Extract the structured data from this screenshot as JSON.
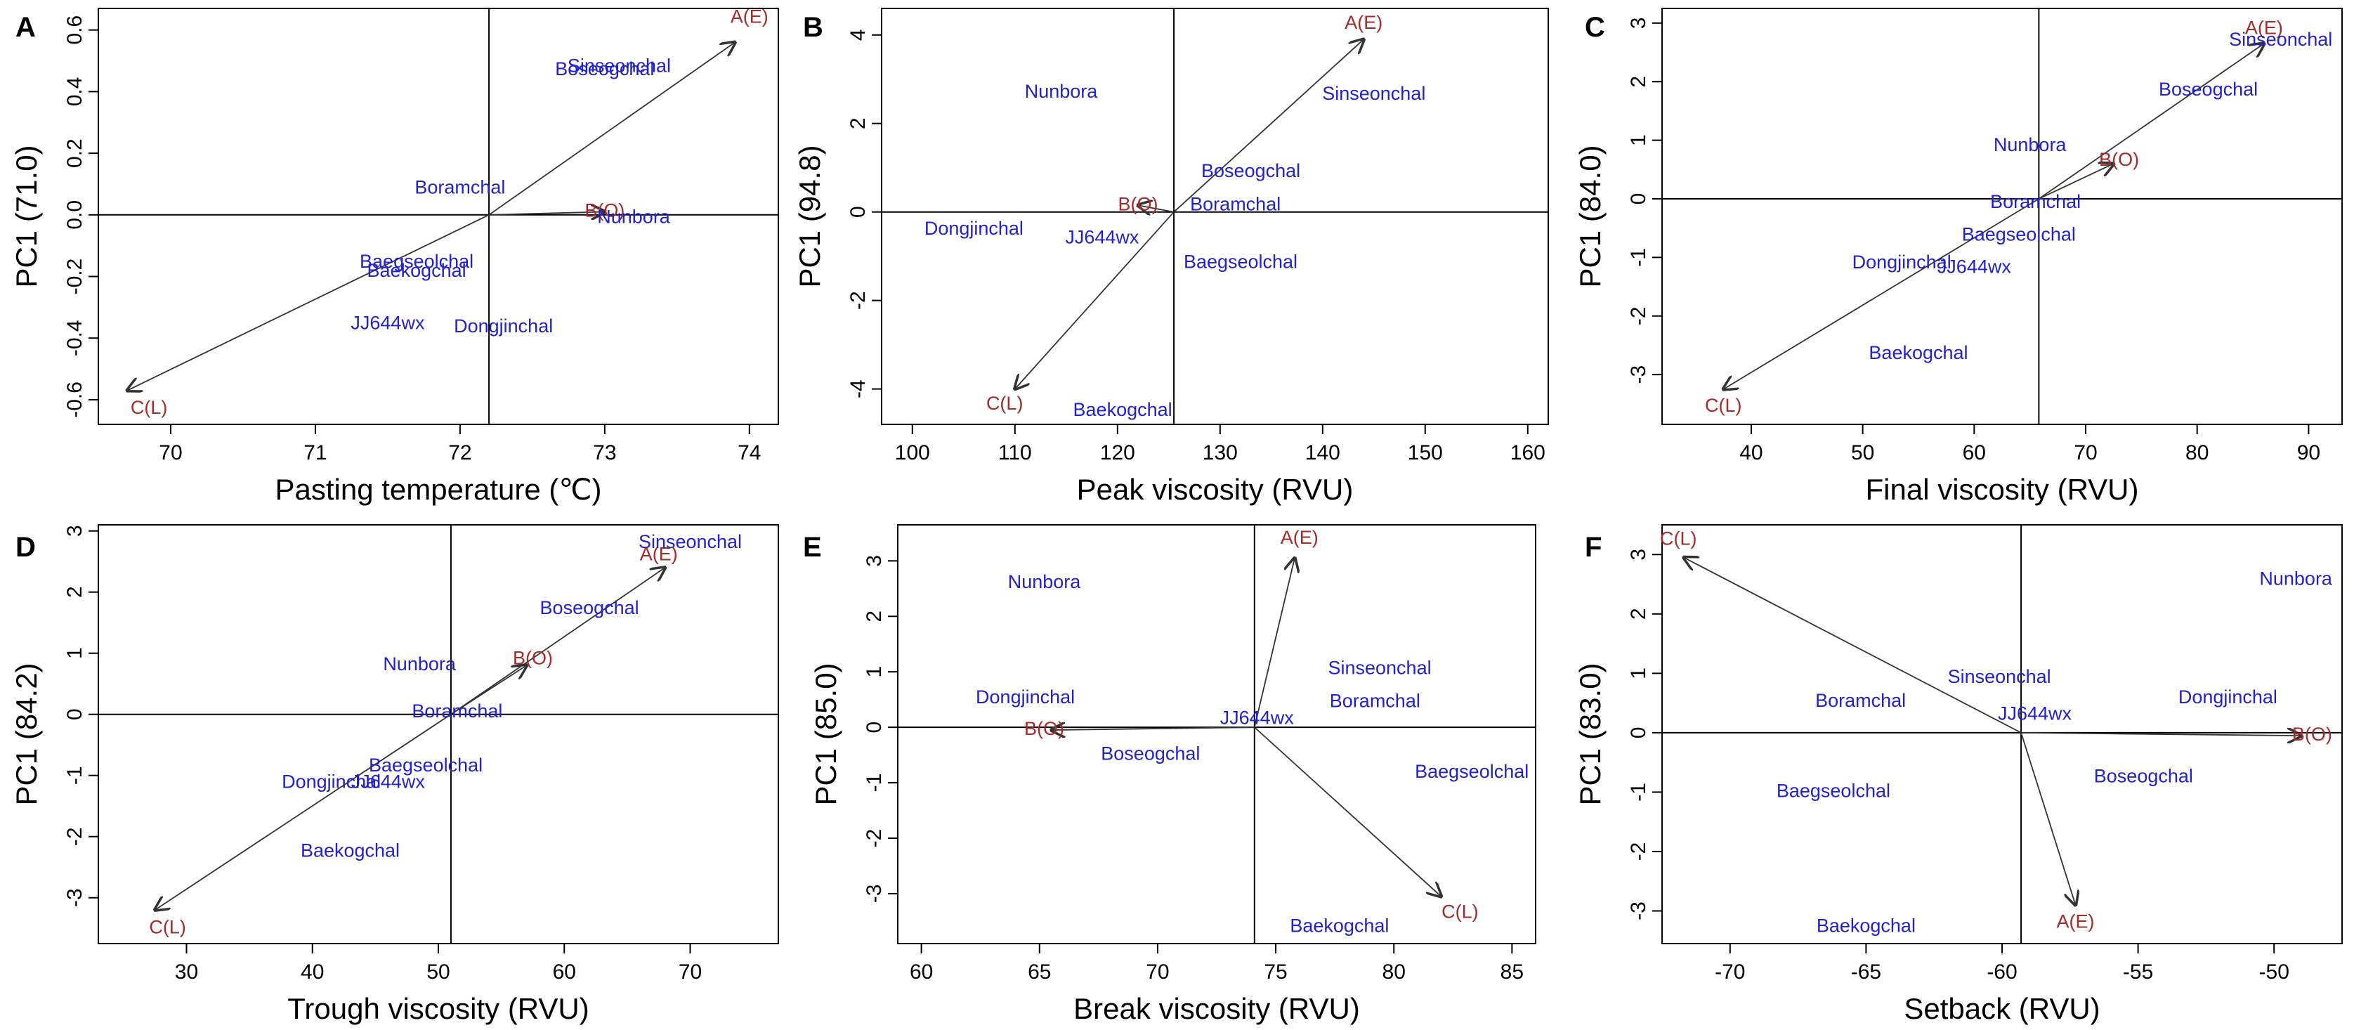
{
  "colors": {
    "samples": "#2222cc",
    "variables": "#a52a2a",
    "axes": "#000000",
    "arrows": "#333333"
  },
  "chart_data": [
    {
      "panel": "A",
      "type": "scatter",
      "xlabel": "Pasting temperature (℃)",
      "ylabel": "PC1 (71.0)",
      "xlim": [
        69.5,
        74.2
      ],
      "ylim": [
        -0.68,
        0.67
      ],
      "xticks": [
        70,
        71,
        72,
        73,
        74
      ],
      "xtick_labels": [
        "70",
        "71",
        "72",
        "73",
        "74"
      ],
      "yticks": [
        -0.6,
        -0.4,
        -0.2,
        0.0,
        0.2,
        0.4,
        0.6
      ],
      "ytick_labels": [
        "-0.6",
        "-0.4",
        "-0.2",
        "0.0",
        "0.2",
        "0.4",
        "0.6"
      ],
      "origin": [
        72.2,
        0.0
      ],
      "variables": [
        {
          "name": "A(E)",
          "x": 74.0,
          "y": 0.64,
          "arrow": [
            73.9,
            0.56
          ]
        },
        {
          "name": "B(O)",
          "x": 73.0,
          "y": 0.01,
          "arrow": [
            73.0,
            0.01
          ]
        },
        {
          "name": "C(L)",
          "x": 69.85,
          "y": -0.63,
          "arrow": [
            69.7,
            -0.57
          ]
        }
      ],
      "samples": [
        {
          "name": "Sinseonchal",
          "x": 73.1,
          "y": 0.48
        },
        {
          "name": "Boseogchal",
          "x": 73.0,
          "y": 0.47
        },
        {
          "name": "Boramchal",
          "x": 72.0,
          "y": 0.085
        },
        {
          "name": "Nunbora",
          "x": 73.2,
          "y": -0.01
        },
        {
          "name": "Baegseolchal",
          "x": 71.7,
          "y": -0.155
        },
        {
          "name": "Baekogchal",
          "x": 71.7,
          "y": -0.185
        },
        {
          "name": "JJ644wx",
          "x": 71.5,
          "y": -0.355
        },
        {
          "name": "Dongjinchal",
          "x": 72.3,
          "y": -0.365
        }
      ]
    },
    {
      "panel": "B",
      "type": "scatter",
      "xlabel": "Peak viscosity (RVU)",
      "ylabel": "PC1 (94.8)",
      "xlim": [
        97,
        162
      ],
      "ylim": [
        -4.8,
        4.6
      ],
      "xticks": [
        100,
        110,
        120,
        130,
        140,
        150,
        160
      ],
      "xtick_labels": [
        "100",
        "110",
        "120",
        "130",
        "140",
        "150",
        "160"
      ],
      "yticks": [
        -4,
        -2,
        0,
        2,
        4
      ],
      "ytick_labels": [
        "-4",
        "-2",
        "0",
        "2",
        "4"
      ],
      "origin": [
        125.5,
        0.0
      ],
      "variables": [
        {
          "name": "A(E)",
          "x": 144,
          "y": 4.25,
          "arrow": [
            144,
            3.9
          ]
        },
        {
          "name": "B(O)",
          "x": 122,
          "y": 0.15,
          "arrow": [
            122,
            0.15
          ]
        },
        {
          "name": "C(L)",
          "x": 109,
          "y": -4.35,
          "arrow": [
            110,
            -4.0
          ]
        }
      ],
      "samples": [
        {
          "name": "Nunbora",
          "x": 114.5,
          "y": 2.7
        },
        {
          "name": "Sinseonchal",
          "x": 145,
          "y": 2.65
        },
        {
          "name": "Boseogchal",
          "x": 133,
          "y": 0.9
        },
        {
          "name": "Boramchal",
          "x": 131.5,
          "y": 0.15
        },
        {
          "name": "Dongjinchal",
          "x": 106,
          "y": -0.4
        },
        {
          "name": "JJ644wx",
          "x": 118.5,
          "y": -0.6
        },
        {
          "name": "Baegseolchal",
          "x": 132,
          "y": -1.15
        },
        {
          "name": "Baekogchal",
          "x": 120.5,
          "y": -4.5
        }
      ]
    },
    {
      "panel": "C",
      "type": "scatter",
      "xlabel": "Final viscosity (RVU)",
      "ylabel": "PC1 (84.0)",
      "xlim": [
        32,
        93
      ],
      "ylim": [
        -3.85,
        3.25
      ],
      "xticks": [
        40,
        50,
        60,
        70,
        80,
        90
      ],
      "xtick_labels": [
        "40",
        "50",
        "60",
        "70",
        "80",
        "90"
      ],
      "yticks": [
        -3,
        -2,
        -1,
        0,
        1,
        2,
        3
      ],
      "ytick_labels": [
        "-3",
        "-2",
        "-1",
        "0",
        "1",
        "2",
        "3"
      ],
      "origin": [
        65.8,
        0.0
      ],
      "variables": [
        {
          "name": "A(E)",
          "x": 86,
          "y": 2.9,
          "arrow": [
            86,
            2.65
          ]
        },
        {
          "name": "B(O)",
          "x": 73,
          "y": 0.65,
          "arrow": [
            72.5,
            0.6
          ]
        },
        {
          "name": "C(L)",
          "x": 37.5,
          "y": -3.55,
          "arrow": [
            37.5,
            -3.25
          ]
        }
      ],
      "samples": [
        {
          "name": "Sinseonchal",
          "x": 87.5,
          "y": 2.7
        },
        {
          "name": "Boseogchal",
          "x": 81,
          "y": 1.85
        },
        {
          "name": "Nunbora",
          "x": 65,
          "y": 0.9
        },
        {
          "name": "Boramchal",
          "x": 65.5,
          "y": -0.07
        },
        {
          "name": "Baegseolchal",
          "x": 64,
          "y": -0.63
        },
        {
          "name": "Dongjinchal",
          "x": 53.5,
          "y": -1.1
        },
        {
          "name": "JJ644wx",
          "x": 60,
          "y": -1.18
        },
        {
          "name": "Baekogchal",
          "x": 55,
          "y": -2.65
        }
      ]
    },
    {
      "panel": "D",
      "type": "scatter",
      "xlabel": "Trough viscosity (RVU)",
      "ylabel": "PC1 (84.2)",
      "xlim": [
        23,
        77
      ],
      "ylim": [
        -3.75,
        3.1
      ],
      "xticks": [
        30,
        40,
        50,
        60,
        70
      ],
      "xtick_labels": [
        "30",
        "40",
        "50",
        "60",
        "70"
      ],
      "yticks": [
        -3,
        -2,
        -1,
        0,
        1,
        2,
        3
      ],
      "ytick_labels": [
        "-3",
        "-2",
        "-1",
        "0",
        "1",
        "2",
        "3"
      ],
      "origin": [
        51,
        0.0
      ],
      "variables": [
        {
          "name": "A(E)",
          "x": 67.5,
          "y": 2.6,
          "arrow": [
            68,
            2.4
          ]
        },
        {
          "name": "B(O)",
          "x": 57.5,
          "y": 0.9,
          "arrow": [
            57,
            0.8
          ]
        },
        {
          "name": "C(L)",
          "x": 28.5,
          "y": -3.5,
          "arrow": [
            27.5,
            -3.2
          ]
        }
      ],
      "samples": [
        {
          "name": "Sinseonchal",
          "x": 70,
          "y": 2.8
        },
        {
          "name": "Boseogchal",
          "x": 62,
          "y": 1.72
        },
        {
          "name": "Nunbora",
          "x": 48.5,
          "y": 0.8
        },
        {
          "name": "Boramchal",
          "x": 51.5,
          "y": 0.03
        },
        {
          "name": "Baegseolchal",
          "x": 49,
          "y": -0.85
        },
        {
          "name": "Dongjinchal",
          "x": 41.5,
          "y": -1.12
        },
        {
          "name": "JJ644wx",
          "x": 46,
          "y": -1.12
        },
        {
          "name": "Baekogchal",
          "x": 43,
          "y": -2.25
        }
      ]
    },
    {
      "panel": "E",
      "type": "scatter",
      "xlabel": "Break viscosity (RVU)",
      "ylabel": "PC1 (85.0)",
      "xlim": [
        59,
        86
      ],
      "ylim": [
        -3.9,
        3.65
      ],
      "xticks": [
        60,
        65,
        70,
        75,
        80,
        85
      ],
      "xtick_labels": [
        "60",
        "65",
        "70",
        "75",
        "80",
        "85"
      ],
      "yticks": [
        -3,
        -2,
        -1,
        0,
        1,
        2,
        3
      ],
      "ytick_labels": [
        "-3",
        "-2",
        "-1",
        "0",
        "1",
        "2",
        "3"
      ],
      "origin": [
        74.1,
        0.0
      ],
      "variables": [
        {
          "name": "A(E)",
          "x": 76,
          "y": 3.4,
          "arrow": [
            75.8,
            3.05
          ]
        },
        {
          "name": "B(O)",
          "x": 65.2,
          "y": -0.05,
          "arrow": [
            65.5,
            -0.05
          ]
        },
        {
          "name": "C(L)",
          "x": 82.8,
          "y": -3.35,
          "arrow": [
            82,
            -3.05
          ]
        }
      ],
      "samples": [
        {
          "name": "Nunbora",
          "x": 65.2,
          "y": 2.6
        },
        {
          "name": "Dongjinchal",
          "x": 64.4,
          "y": 0.52
        },
        {
          "name": "JJ644wx",
          "x": 74.2,
          "y": 0.15
        },
        {
          "name": "Sinseonchal",
          "x": 79.4,
          "y": 1.05
        },
        {
          "name": "Boramchal",
          "x": 79.2,
          "y": 0.45
        },
        {
          "name": "Boseogchal",
          "x": 69.7,
          "y": -0.5
        },
        {
          "name": "Baegseolchal",
          "x": 83.3,
          "y": -0.82
        },
        {
          "name": "Baekogchal",
          "x": 77.7,
          "y": -3.6
        }
      ]
    },
    {
      "panel": "F",
      "type": "scatter",
      "xlabel": "Setback (RVU)",
      "ylabel": "PC1 (83.0)",
      "xlim": [
        -72.5,
        -47.5
      ],
      "ylim": [
        -3.55,
        3.5
      ],
      "xticks": [
        -70,
        -65,
        -60,
        -55,
        -50
      ],
      "xtick_labels": [
        "-70",
        "-65",
        "-60",
        "-55",
        "-50"
      ],
      "yticks": [
        -3,
        -2,
        -1,
        0,
        1,
        2,
        3
      ],
      "ytick_labels": [
        "-3",
        "-2",
        "-1",
        "0",
        "1",
        "2",
        "3"
      ],
      "origin": [
        -59.3,
        0.0
      ],
      "variables": [
        {
          "name": "A(E)",
          "x": -57.3,
          "y": -3.2,
          "arrow": [
            -57.3,
            -2.9
          ]
        },
        {
          "name": "B(O)",
          "x": -48.6,
          "y": -0.05,
          "arrow": [
            -49,
            -0.05
          ]
        },
        {
          "name": "C(L)",
          "x": -71.9,
          "y": 3.25,
          "arrow": [
            -71.7,
            2.95
          ]
        }
      ],
      "samples": [
        {
          "name": "Nunbora",
          "x": -49.2,
          "y": 2.57
        },
        {
          "name": "Sinseonchal",
          "x": -60.1,
          "y": 0.92
        },
        {
          "name": "Boramchal",
          "x": -65.2,
          "y": 0.52
        },
        {
          "name": "JJ644wx",
          "x": -58.8,
          "y": 0.3
        },
        {
          "name": "Dongjinchal",
          "x": -51.7,
          "y": 0.58
        },
        {
          "name": "Boseogchal",
          "x": -54.8,
          "y": -0.75
        },
        {
          "name": "Baegseolchal",
          "x": -66.2,
          "y": -1.0
        },
        {
          "name": "Baekogchal",
          "x": -65,
          "y": -3.27
        }
      ]
    }
  ]
}
